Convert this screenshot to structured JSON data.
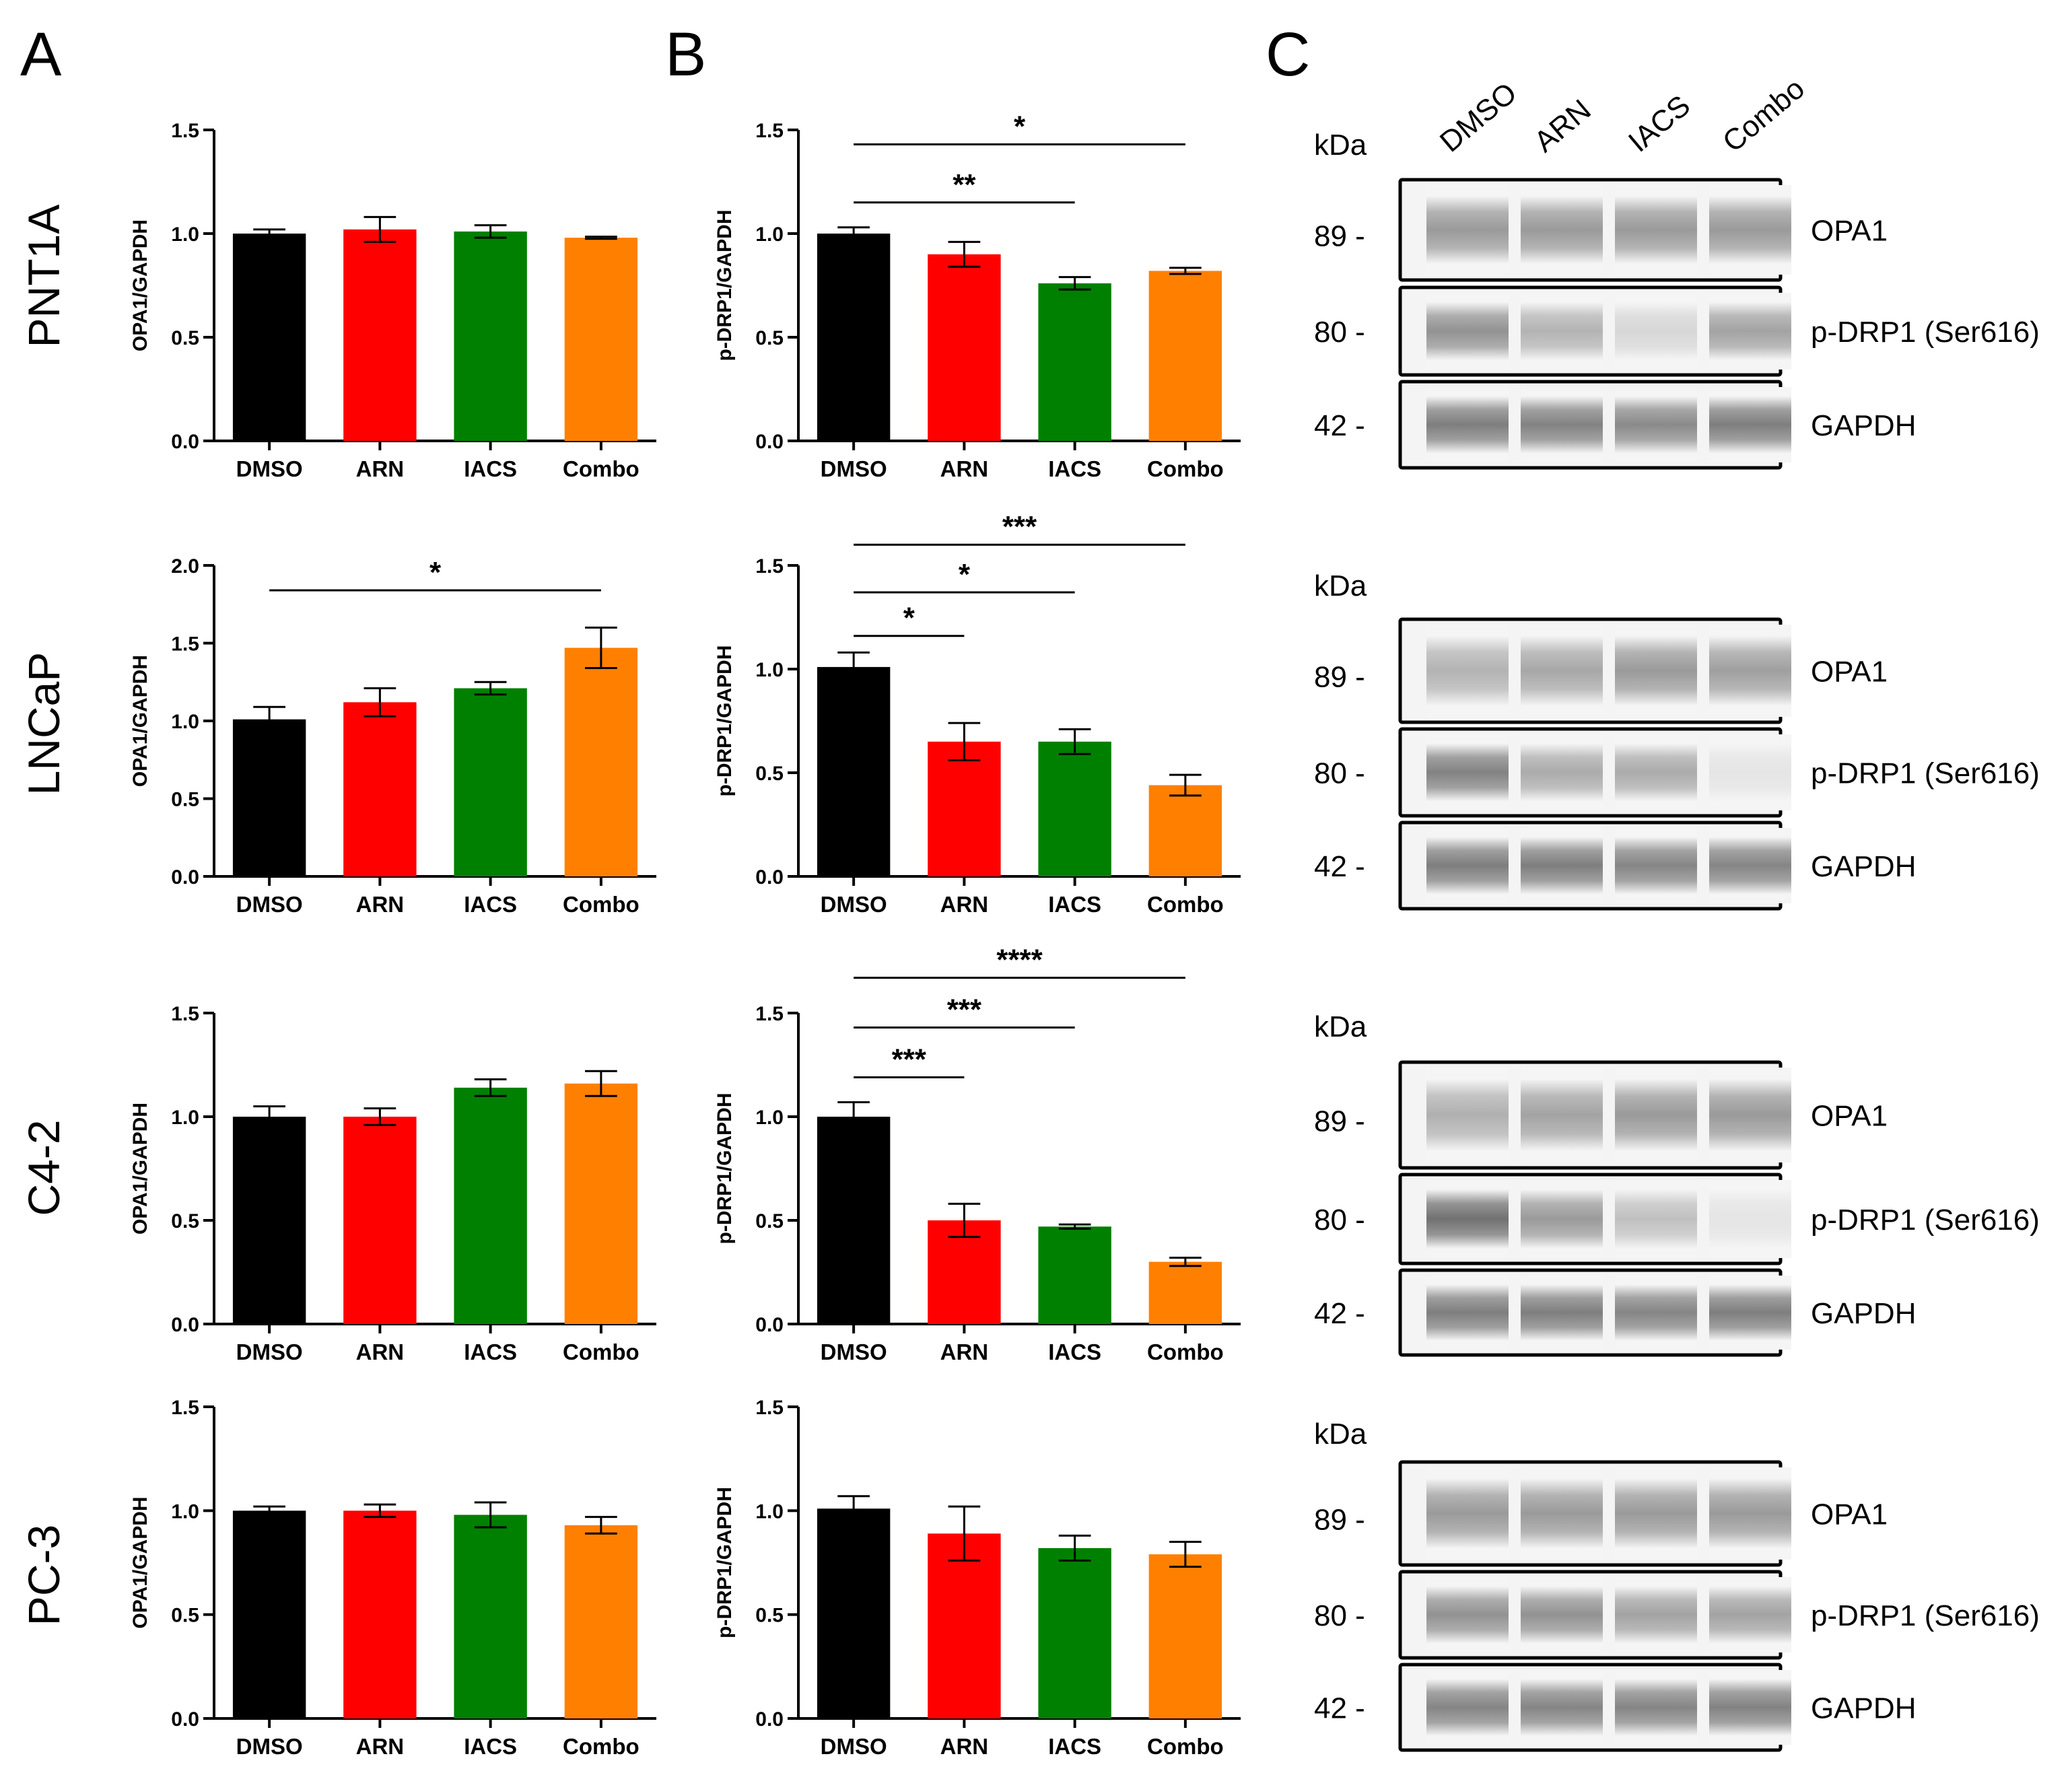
{
  "panels": {
    "A": "A",
    "B": "B",
    "C": "C"
  },
  "rows": [
    "PNT1A",
    "LNCaP",
    "C4-2",
    "PC-3"
  ],
  "colors": {
    "DMSO": "#000000",
    "ARN": "#ff0000",
    "IACS": "#008000",
    "Combo": "#ff8000"
  },
  "chart_data": [
    {
      "id": "A-PNT1A",
      "type": "bar",
      "panel": "A",
      "row": "PNT1A",
      "ylabel": "OPA1/GAPDH",
      "categories": [
        "DMSO",
        "ARN",
        "IACS",
        "Combo"
      ],
      "values": [
        1.0,
        1.02,
        1.01,
        0.98
      ],
      "errors": [
        0.02,
        0.06,
        0.03,
        0.005
      ],
      "ylim": [
        0,
        1.5
      ],
      "yticks": [
        "0.0",
        "0.5",
        "1.0",
        "1.5"
      ],
      "significance": []
    },
    {
      "id": "B-PNT1A",
      "type": "bar",
      "panel": "B",
      "row": "PNT1A",
      "ylabel": "p-DRP1/GAPDH",
      "categories": [
        "DMSO",
        "ARN",
        "IACS",
        "Combo"
      ],
      "values": [
        1.0,
        0.9,
        0.76,
        0.82
      ],
      "errors": [
        0.03,
        0.06,
        0.03,
        0.015
      ],
      "ylim": [
        0,
        1.5
      ],
      "yticks": [
        "0.0",
        "0.5",
        "1.0",
        "1.5"
      ],
      "significance": [
        {
          "from": 0,
          "to": 3,
          "y": 1.43,
          "label": "*"
        },
        {
          "from": 0,
          "to": 2,
          "y": 1.15,
          "label": "**"
        }
      ]
    },
    {
      "id": "A-LNCaP",
      "type": "bar",
      "panel": "A",
      "row": "LNCaP",
      "ylabel": "OPA1/GAPDH",
      "categories": [
        "DMSO",
        "ARN",
        "IACS",
        "Combo"
      ],
      "values": [
        1.01,
        1.12,
        1.21,
        1.47
      ],
      "errors": [
        0.08,
        0.09,
        0.04,
        0.13
      ],
      "ylim": [
        0,
        2.0
      ],
      "yticks": [
        "0.0",
        "0.5",
        "1.0",
        "1.5",
        "2.0"
      ],
      "significance": [
        {
          "from": 0,
          "to": 3,
          "y": 1.84,
          "label": "*"
        }
      ]
    },
    {
      "id": "B-LNCaP",
      "type": "bar",
      "panel": "B",
      "row": "LNCaP",
      "ylabel": "p-DRP1/GAPDH",
      "categories": [
        "DMSO",
        "ARN",
        "IACS",
        "Combo"
      ],
      "values": [
        1.01,
        0.65,
        0.65,
        0.44
      ],
      "errors": [
        0.07,
        0.09,
        0.06,
        0.05
      ],
      "ylim": [
        0,
        1.5
      ],
      "yticks": [
        "0.0",
        "0.5",
        "1.0",
        "1.5"
      ],
      "significance": [
        {
          "from": 0,
          "to": 3,
          "y": 1.6,
          "label": "***"
        },
        {
          "from": 0,
          "to": 2,
          "y": 1.37,
          "label": "*"
        },
        {
          "from": 0,
          "to": 1,
          "y": 1.16,
          "label": "*"
        }
      ]
    },
    {
      "id": "A-C4-2",
      "type": "bar",
      "panel": "A",
      "row": "C4-2",
      "ylabel": "OPA1/GAPDH",
      "categories": [
        "DMSO",
        "ARN",
        "IACS",
        "Combo"
      ],
      "values": [
        1.0,
        1.0,
        1.14,
        1.16
      ],
      "errors": [
        0.05,
        0.04,
        0.04,
        0.06
      ],
      "ylim": [
        0,
        1.5
      ],
      "yticks": [
        "0.0",
        "0.5",
        "1.0",
        "1.5"
      ],
      "significance": []
    },
    {
      "id": "B-C4-2",
      "type": "bar",
      "panel": "B",
      "row": "C4-2",
      "ylabel": "p-DRP1/GAPDH",
      "categories": [
        "DMSO",
        "ARN",
        "IACS",
        "Combo"
      ],
      "values": [
        1.0,
        0.5,
        0.47,
        0.3
      ],
      "errors": [
        0.07,
        0.08,
        0.01,
        0.02
      ],
      "ylim": [
        0,
        1.5
      ],
      "yticks": [
        "0.0",
        "0.5",
        "1.0",
        "1.5"
      ],
      "significance": [
        {
          "from": 0,
          "to": 3,
          "y": 1.67,
          "label": "****"
        },
        {
          "from": 0,
          "to": 2,
          "y": 1.43,
          "label": "***"
        },
        {
          "from": 0,
          "to": 1,
          "y": 1.19,
          "label": "***"
        }
      ]
    },
    {
      "id": "A-PC-3",
      "type": "bar",
      "panel": "A",
      "row": "PC-3",
      "ylabel": "OPA1/GAPDH",
      "categories": [
        "DMSO",
        "ARN",
        "IACS",
        "Combo"
      ],
      "values": [
        1.0,
        1.0,
        0.98,
        0.93
      ],
      "errors": [
        0.02,
        0.03,
        0.06,
        0.04
      ],
      "ylim": [
        0,
        1.5
      ],
      "yticks": [
        "0.0",
        "0.5",
        "1.0",
        "1.5"
      ],
      "significance": []
    },
    {
      "id": "B-PC-3",
      "type": "bar",
      "panel": "B",
      "row": "PC-3",
      "ylabel": "p-DRP1/GAPDH",
      "categories": [
        "DMSO",
        "ARN",
        "IACS",
        "Combo"
      ],
      "values": [
        1.01,
        0.89,
        0.82,
        0.79
      ],
      "errors": [
        0.06,
        0.13,
        0.06,
        0.06
      ],
      "ylim": [
        0,
        1.5
      ],
      "yticks": [
        "0.0",
        "0.5",
        "1.0",
        "1.5"
      ],
      "significance": []
    }
  ],
  "blots": {
    "lane_labels": [
      "DMSO",
      "ARN",
      "IACS",
      "Combo"
    ],
    "kda_label": "kDa",
    "markers": [
      "89 -",
      "80 -",
      "42 -"
    ],
    "proteins": [
      "OPA1",
      "p-DRP1 (Ser616)",
      "GAPDH"
    ],
    "intensity": {
      "PNT1A": [
        [
          0.55,
          0.55,
          0.55,
          0.55
        ],
        [
          0.6,
          0.4,
          0.18,
          0.5
        ],
        [
          0.72,
          0.7,
          0.65,
          0.72
        ]
      ],
      "LNCaP": [
        [
          0.4,
          0.47,
          0.55,
          0.52
        ],
        [
          0.7,
          0.45,
          0.45,
          0.1
        ],
        [
          0.72,
          0.72,
          0.68,
          0.68
        ]
      ],
      "C4-2": [
        [
          0.42,
          0.5,
          0.55,
          0.55
        ],
        [
          0.8,
          0.55,
          0.32,
          0.1
        ],
        [
          0.72,
          0.72,
          0.68,
          0.72
        ]
      ],
      "PC-3": [
        [
          0.55,
          0.55,
          0.55,
          0.55
        ],
        [
          0.6,
          0.6,
          0.5,
          0.5
        ],
        [
          0.68,
          0.68,
          0.68,
          0.7
        ]
      ]
    }
  }
}
